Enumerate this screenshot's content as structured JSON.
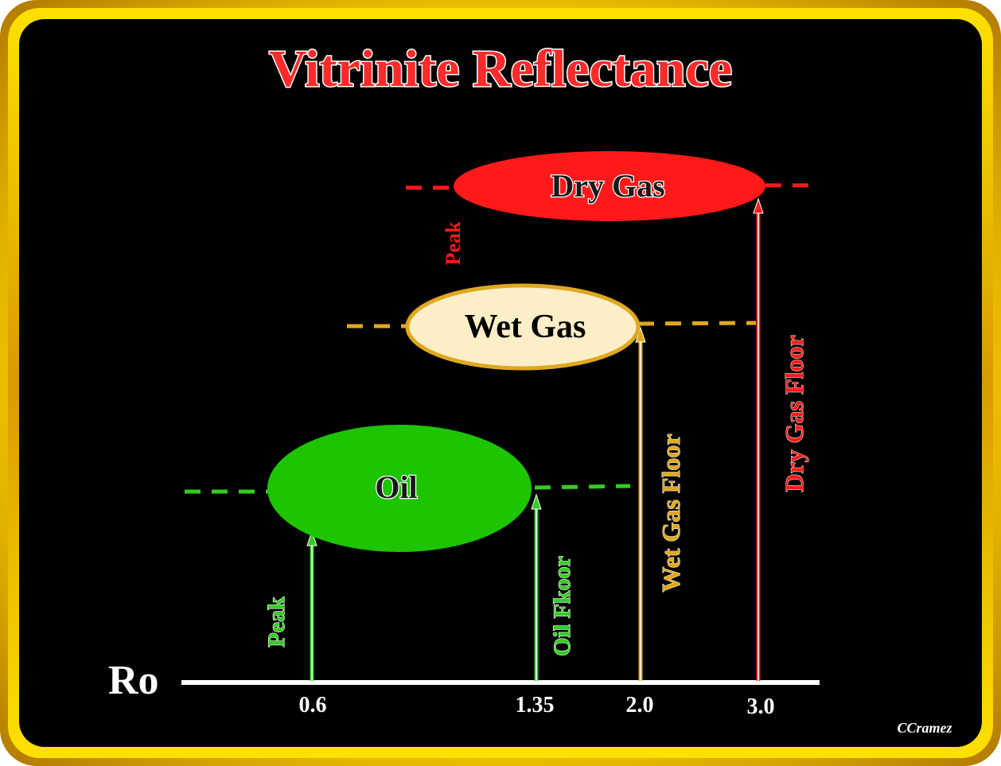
{
  "title": "Vitrinite Reflectance",
  "axis": {
    "label": "Ro",
    "ticks": [
      "0.6",
      "1.35",
      "2.0",
      "3.0"
    ]
  },
  "zones": {
    "oil": "Oil",
    "wet_gas": "Wet Gas",
    "dry_gas": "Dry Gas"
  },
  "markers": {
    "oil_peak": "Peak",
    "oil_floor": "Oil Fkoor",
    "wet_gas_floor": "Wet Gas Floor",
    "dry_gas_peak": "Peak",
    "dry_gas_floor": "Dry Gas Floor"
  },
  "credit": "CCramez",
  "colors": {
    "oil": "#1ec400",
    "oil_line": "#33cc22",
    "wet_gas_fill": "#fcefc8",
    "wet_gas_line": "#e0a820",
    "dry_gas": "#ff1a1a",
    "title_fill": "#ff2a2a",
    "frame": "#ffd200"
  }
}
